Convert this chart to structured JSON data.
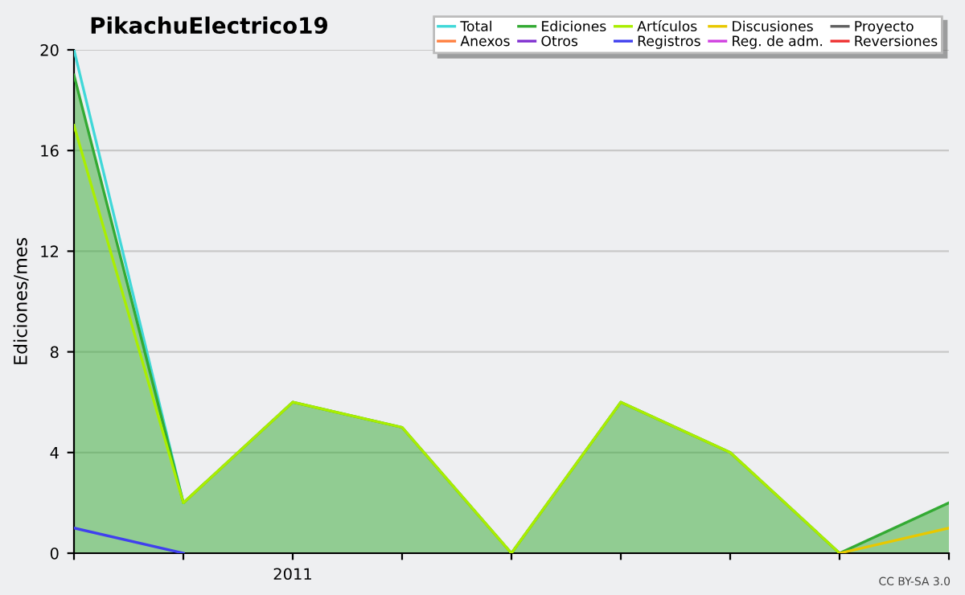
{
  "chart_data": {
    "type": "line",
    "title": "PikachuElectrico19",
    "ylabel": "Ediciones/mes",
    "categories": [
      null,
      null,
      "2011",
      null,
      null,
      null,
      null,
      null,
      null
    ],
    "series": [
      {
        "name": "Total",
        "color": "#40d8d8",
        "values": [
          20,
          2,
          null,
          null,
          null,
          null,
          null,
          null,
          null
        ]
      },
      {
        "name": "Anexos",
        "color": "#ff8040",
        "values": [
          null,
          null,
          null,
          null,
          null,
          null,
          null,
          null,
          null
        ]
      },
      {
        "name": "Ediciones",
        "color": "#33aa33",
        "type": "area",
        "values": [
          19,
          2,
          6,
          5,
          0,
          6,
          4,
          0,
          2
        ]
      },
      {
        "name": "Otros",
        "color": "#8030d0",
        "values": [
          null,
          null,
          null,
          null,
          null,
          null,
          null,
          null,
          null
        ]
      },
      {
        "name": "Artículos",
        "color": "#aaee00",
        "values": [
          17,
          2,
          6,
          5,
          0,
          6,
          4,
          0,
          null
        ]
      },
      {
        "name": "Registros",
        "color": "#4040ee",
        "values": [
          1,
          0,
          null,
          null,
          null,
          null,
          null,
          null,
          null
        ]
      },
      {
        "name": "Discusiones",
        "color": "#e8c800",
        "values": [
          null,
          null,
          null,
          null,
          null,
          null,
          null,
          0,
          1
        ]
      },
      {
        "name": "Reg. de adm.",
        "color": "#d040e0",
        "values": [
          null,
          null,
          null,
          null,
          null,
          null,
          null,
          null,
          null
        ]
      },
      {
        "name": "Proyecto",
        "color": "#606060",
        "values": [
          null,
          null,
          null,
          null,
          null,
          null,
          null,
          null,
          null
        ]
      },
      {
        "name": "Reversiones",
        "color": "#ee3030",
        "values": [
          null,
          null,
          null,
          null,
          null,
          null,
          null,
          null,
          null
        ]
      }
    ],
    "ylim": [
      0,
      20
    ],
    "yticks": [
      0,
      4,
      8,
      12,
      16,
      20
    ],
    "grid": "y",
    "legend": "top right",
    "annotations": [
      "CC BY-SA 3.0"
    ]
  }
}
